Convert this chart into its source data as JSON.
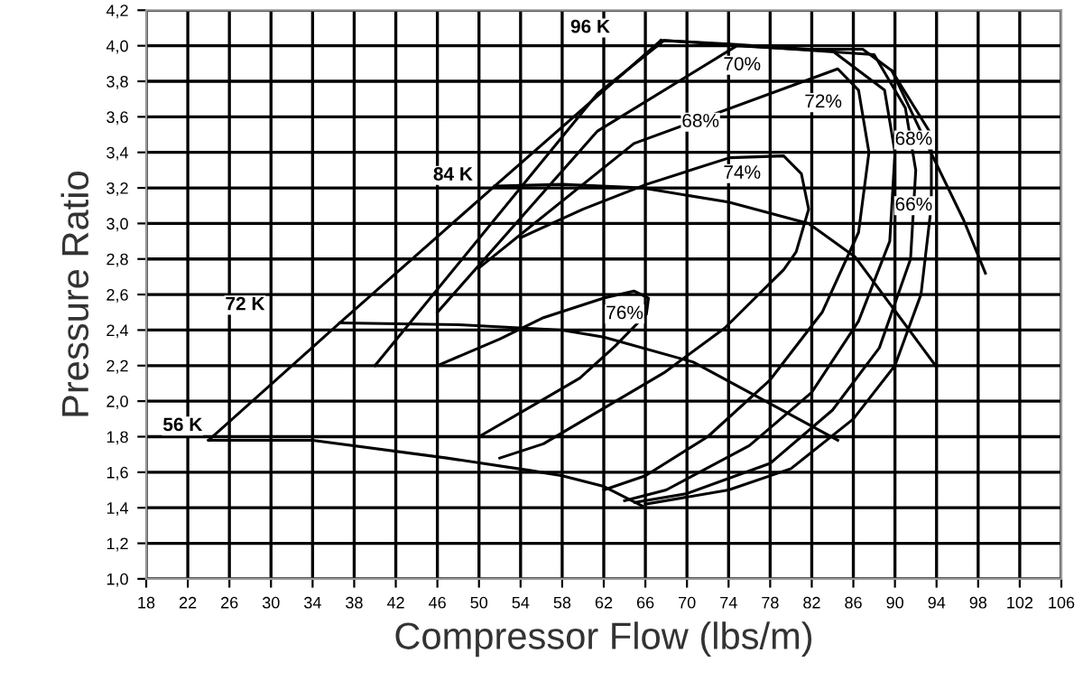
{
  "chart_data": {
    "type": "line",
    "xlabel": "Compressor Flow (lbs/m)",
    "ylabel": "Pressure Ratio",
    "xlim": [
      18,
      106
    ],
    "xticks": [
      18,
      22,
      26,
      30,
      34,
      38,
      42,
      46,
      50,
      54,
      58,
      62,
      66,
      70,
      74,
      78,
      82,
      86,
      90,
      94,
      98,
      102,
      106
    ],
    "ylim": [
      1.0,
      4.2
    ],
    "yticks": [
      {
        "value": 1.0,
        "label": "1,0"
      },
      {
        "value": 1.2,
        "label": "1,2"
      },
      {
        "value": 1.4,
        "label": "1,4"
      },
      {
        "value": 1.6,
        "label": "1,6"
      },
      {
        "value": 1.8,
        "label": "1,8"
      },
      {
        "value": 2.0,
        "label": "2,0"
      },
      {
        "value": 2.2,
        "label": "2,2"
      },
      {
        "value": 2.4,
        "label": "2,4"
      },
      {
        "value": 2.6,
        "label": "2,6"
      },
      {
        "value": 2.8,
        "label": "2,8"
      },
      {
        "value": 3.0,
        "label": "3,0"
      },
      {
        "value": 3.2,
        "label": "3,2"
      },
      {
        "value": 3.4,
        "label": "3,4"
      },
      {
        "value": 3.6,
        "label": "3,6"
      },
      {
        "value": 3.8,
        "label": "3,8"
      },
      {
        "value": 4.0,
        "label": "4,0"
      },
      {
        "value": 4.2,
        "label": "4,2"
      }
    ],
    "grid": true,
    "marker": "none",
    "line_style": "solid",
    "series": [
      {
        "color": "#000000",
        "x": [
          24,
          36.6,
          51.5,
          67.5
        ],
        "values": [
          1.78,
          2.44,
          3.21,
          4.03
        ]
      },
      {
        "color": "#000000",
        "x": [
          24,
          34,
          46.9,
          54.9,
          58,
          62,
          65.7
        ],
        "values": [
          1.78,
          1.78,
          1.68,
          1.61,
          1.58,
          1.52,
          1.41
        ]
      },
      {
        "color": "#000000",
        "x": [
          36.6,
          48,
          58,
          62,
          70.6,
          84.5
        ],
        "values": [
          2.44,
          2.43,
          2.4,
          2.36,
          2.22,
          1.78
        ]
      },
      {
        "color": "#000000",
        "x": [
          51.5,
          58,
          65.7,
          74,
          81.7,
          86.2,
          93.9
        ],
        "values": [
          3.21,
          3.22,
          3.2,
          3.12,
          3.0,
          2.81,
          2.2
        ]
      },
      {
        "color": "#000000",
        "x": [
          67.5,
          74.1,
          81.7,
          86.9,
          89.7,
          93.2,
          96.6,
          98.7
        ],
        "values": [
          4.03,
          4.01,
          3.98,
          3.98,
          3.86,
          3.43,
          3.02,
          2.72
        ]
      },
      {
        "color": "#000000",
        "x": [
          46,
          52,
          56.2,
          62,
          64.9,
          66.3,
          66.1,
          63.1,
          59.7,
          56.2,
          50
        ],
        "values": [
          2.2,
          2.35,
          2.47,
          2.58,
          2.62,
          2.58,
          2.49,
          2.31,
          2.13,
          2.01,
          1.8
        ]
      },
      {
        "color": "#000000",
        "x": [
          54,
          60,
          66.1,
          74.1,
          79.3,
          81,
          81.7,
          80.5,
          79.3,
          73.6,
          67.8,
          56.2,
          52
        ],
        "values": [
          2.92,
          3.08,
          3.22,
          3.37,
          3.38,
          3.28,
          3.08,
          2.84,
          2.74,
          2.41,
          2.16,
          1.76,
          1.68
        ]
      },
      {
        "color": "#000000",
        "x": [
          50,
          64.9,
          84.5,
          86.5,
          87.5,
          86.5,
          83,
          78,
          72,
          66,
          62
        ],
        "values": [
          2.75,
          3.45,
          3.87,
          3.75,
          3.4,
          2.95,
          2.5,
          2.12,
          1.8,
          1.58,
          1.5
        ]
      },
      {
        "color": "#000000",
        "x": [
          46,
          61.4,
          74.8,
          84,
          89,
          90,
          89.5,
          86.5,
          82,
          76,
          68,
          64
        ],
        "values": [
          2.5,
          3.52,
          4.0,
          3.97,
          3.75,
          3.4,
          2.9,
          2.45,
          2.05,
          1.75,
          1.5,
          1.44
        ]
      },
      {
        "color": "#000000",
        "x": [
          40,
          61.4,
          67.8,
          88,
          91,
          92,
          91.5,
          88.5,
          84,
          78,
          70,
          65
        ],
        "values": [
          2.2,
          3.73,
          4.03,
          3.95,
          3.65,
          3.3,
          2.8,
          2.3,
          1.95,
          1.65,
          1.48,
          1.43
        ]
      },
      {
        "color": "#000000",
        "x": [
          89.7,
          93.5,
          93.5,
          92.5,
          90,
          86,
          80,
          74,
          66
        ],
        "values": [
          3.86,
          3.5,
          3.1,
          2.6,
          2.2,
          1.9,
          1.62,
          1.5,
          1.42
        ]
      }
    ],
    "annotations": [
      {
        "text": "56 K",
        "x": 21.5,
        "y": 1.86
      },
      {
        "text": "72 K",
        "x": 27.5,
        "y": 2.54
      },
      {
        "text": "84 K",
        "x": 47.5,
        "y": 3.27
      },
      {
        "text": "96 K",
        "x": 60.7,
        "y": 4.1
      },
      {
        "text": "68%",
        "x": 71.3,
        "y": 3.57
      },
      {
        "text": "70%",
        "x": 75.3,
        "y": 3.89
      },
      {
        "text": "72%",
        "x": 83.1,
        "y": 3.68
      },
      {
        "text": "74%",
        "x": 75.3,
        "y": 3.28
      },
      {
        "text": "76%",
        "x": 64,
        "y": 2.49
      },
      {
        "text": "68%",
        "x": 91.8,
        "y": 3.47
      },
      {
        "text": "66%",
        "x": 91.8,
        "y": 3.1
      }
    ]
  }
}
